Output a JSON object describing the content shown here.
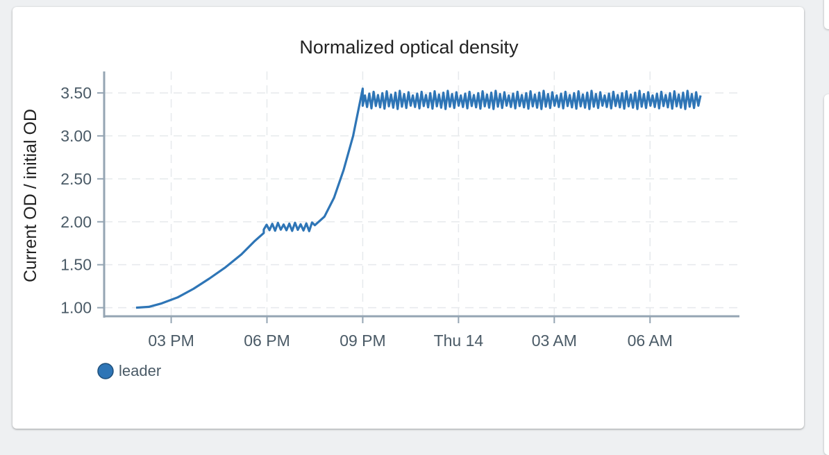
{
  "chart_data": {
    "type": "line",
    "title": "Normalized optical density",
    "ylabel": "Current OD / initial OD",
    "xlabel": "",
    "ylim": [
      0.9,
      3.75
    ],
    "yticks": [
      1.0,
      1.5,
      2.0,
      2.5,
      3.0,
      3.5
    ],
    "ytick_labels": [
      "1.00",
      "1.50",
      "2.00",
      "2.50",
      "3.00",
      "3.50"
    ],
    "x_start": "Wed 13 12:55 PM",
    "x_end": "Thu 14 08:30 AM",
    "xticks": [
      {
        "label": "03 PM",
        "hour": 15
      },
      {
        "label": "06 PM",
        "hour": 18
      },
      {
        "label": "09 PM",
        "hour": 21
      },
      {
        "label": "Thu 14",
        "hour": 24
      },
      {
        "label": "03 AM",
        "hour": 27
      },
      {
        "label": "06 AM",
        "hour": 30
      }
    ],
    "grid": true,
    "legend_position": "bottom-left",
    "series": [
      {
        "name": "leader",
        "color": "#2e75b6",
        "segments": [
          {
            "kind": "growth",
            "points": [
              {
                "hour": 13.9,
                "y": 1.0
              },
              {
                "hour": 14.3,
                "y": 1.01
              },
              {
                "hour": 14.7,
                "y": 1.05
              },
              {
                "hour": 15.2,
                "y": 1.12
              },
              {
                "hour": 15.7,
                "y": 1.22
              },
              {
                "hour": 16.2,
                "y": 1.34
              },
              {
                "hour": 16.7,
                "y": 1.47
              },
              {
                "hour": 17.2,
                "y": 1.62
              },
              {
                "hour": 17.6,
                "y": 1.77
              },
              {
                "hour": 17.9,
                "y": 1.87
              }
            ]
          },
          {
            "kind": "oscillating",
            "start_hour": 17.9,
            "end_hour": 19.5,
            "low": 1.9,
            "high": 1.98,
            "cycles": 9
          },
          {
            "kind": "growth",
            "points": [
              {
                "hour": 19.5,
                "y": 1.96
              },
              {
                "hour": 19.8,
                "y": 2.06
              },
              {
                "hour": 20.1,
                "y": 2.28
              },
              {
                "hour": 20.4,
                "y": 2.6
              },
              {
                "hour": 20.7,
                "y": 3.0
              },
              {
                "hour": 21.0,
                "y": 3.55
              }
            ]
          },
          {
            "kind": "oscillating",
            "start_hour": 21.0,
            "end_hour": 31.65,
            "low": 3.33,
            "high": 3.5,
            "cycles": 78
          }
        ]
      }
    ]
  }
}
